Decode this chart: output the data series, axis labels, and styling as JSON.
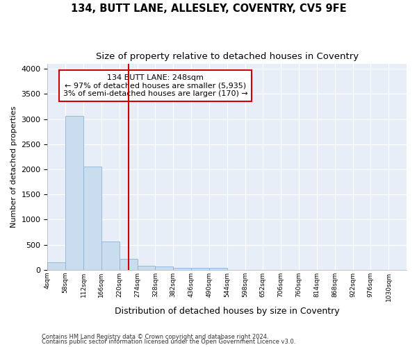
{
  "title": "134, BUTT LANE, ALLESLEY, COVENTRY, CV5 9FE",
  "subtitle": "Size of property relative to detached houses in Coventry",
  "xlabel": "Distribution of detached houses by size in Coventry",
  "ylabel": "Number of detached properties",
  "bin_edges": [
    4,
    58,
    112,
    166,
    220,
    274,
    328,
    382,
    436,
    490,
    544,
    598,
    652,
    706,
    760,
    814,
    868,
    922,
    976,
    1030,
    1084
  ],
  "bar_heights": [
    150,
    3060,
    2060,
    565,
    220,
    80,
    60,
    40,
    35,
    35,
    0,
    0,
    0,
    0,
    0,
    0,
    0,
    0,
    0,
    0
  ],
  "bar_color": "#c9ddef",
  "bar_edge_color": "#8ab4d4",
  "property_size": 248,
  "vline_color": "#cc0000",
  "annotation_line1": "134 BUTT LANE: 248sqm",
  "annotation_line2": "← 97% of detached houses are smaller (5,935)",
  "annotation_line3": "3% of semi-detached houses are larger (170) →",
  "annotation_box_color": "#ffffff",
  "annotation_box_edge_color": "#cc0000",
  "ylim": [
    0,
    4100
  ],
  "yticks": [
    0,
    500,
    1000,
    1500,
    2000,
    2500,
    3000,
    3500,
    4000
  ],
  "background_color": "#e8eef8",
  "grid_color": "#ffffff",
  "footer_line1": "Contains HM Land Registry data © Crown copyright and database right 2024.",
  "footer_line2": "Contains public sector information licensed under the Open Government Licence v3.0.",
  "title_fontsize": 10.5,
  "subtitle_fontsize": 9.5,
  "annotation_fontsize": 8,
  "xlabel_fontsize": 9,
  "ylabel_fontsize": 8
}
